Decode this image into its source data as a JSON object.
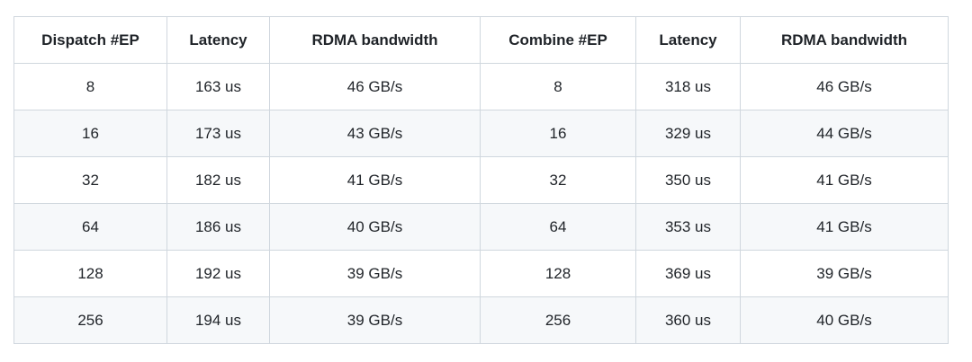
{
  "table": {
    "headers": [
      "Dispatch #EP",
      "Latency",
      "RDMA bandwidth",
      "Combine #EP",
      "Latency",
      "RDMA bandwidth"
    ],
    "rows": [
      [
        "8",
        "163 us",
        "46 GB/s",
        "8",
        "318 us",
        "46 GB/s"
      ],
      [
        "16",
        "173 us",
        "43 GB/s",
        "16",
        "329 us",
        "44 GB/s"
      ],
      [
        "32",
        "182 us",
        "41 GB/s",
        "32",
        "350 us",
        "41 GB/s"
      ],
      [
        "64",
        "186 us",
        "40 GB/s",
        "64",
        "353 us",
        "41 GB/s"
      ],
      [
        "128",
        "192 us",
        "39 GB/s",
        "128",
        "369 us",
        "39 GB/s"
      ],
      [
        "256",
        "194 us",
        "39 GB/s",
        "256",
        "360 us",
        "40 GB/s"
      ]
    ],
    "colors": {
      "border": "#d0d7de",
      "stripe": "#f6f8fa",
      "text": "#1f2328",
      "header_background": "#ffffff",
      "row_background": "#ffffff",
      "page_background": "#ffffff"
    }
  }
}
